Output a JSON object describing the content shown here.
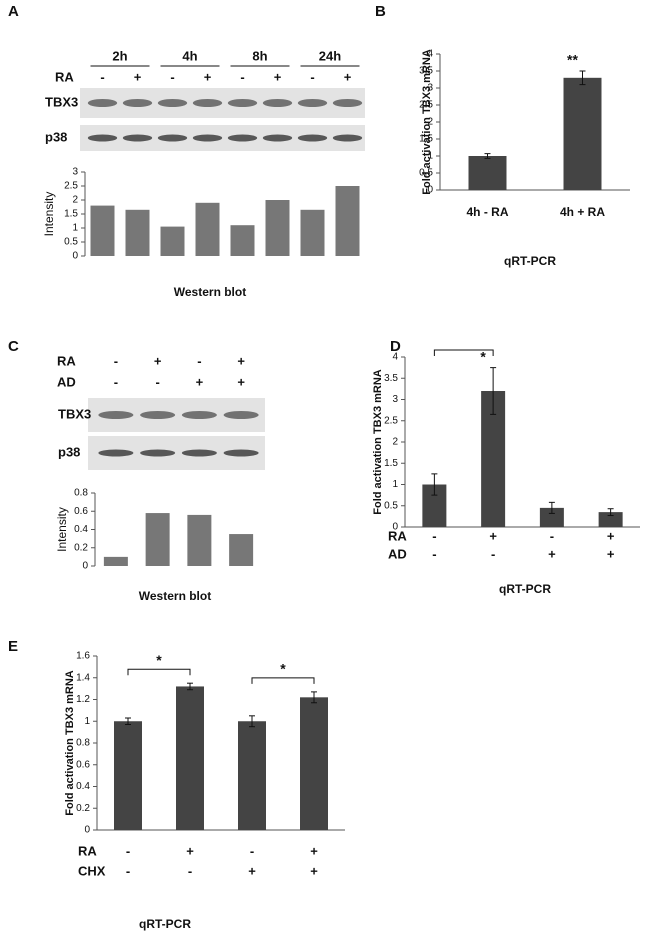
{
  "chart_data": [
    {
      "type": "bar",
      "panel": "A",
      "group_labels": [
        "2h",
        "4h",
        "8h",
        "24h"
      ],
      "conditions": [
        {
          "label": "RA",
          "signs": [
            "-",
            "+",
            "-",
            "+",
            "-",
            "+",
            "-",
            "+"
          ]
        }
      ],
      "bands": [
        "TBX3",
        "p38"
      ],
      "categories": [
        null,
        null,
        null,
        null,
        null,
        null,
        null,
        null
      ],
      "values": [
        1.8,
        1.65,
        1.05,
        1.9,
        1.1,
        2.0,
        1.65,
        2.5
      ],
      "color": "#777777",
      "ylabel": "Intensity",
      "xlabel": "Western blot",
      "ylim": [
        0,
        3
      ],
      "yticks": [
        0,
        0.5,
        1,
        1.5,
        2,
        2.5,
        3
      ]
    },
    {
      "type": "bar",
      "panel": "B",
      "categories": [
        "4h - RA",
        "4h + RA"
      ],
      "values": [
        1,
        3.3
      ],
      "errors": [
        0.07,
        0.2
      ],
      "significance": [
        null,
        "**"
      ],
      "color": "#444444",
      "ylabel": "Fold activation TBX3 mRNA",
      "xlabel": "qRT-PCR",
      "ylim": [
        0,
        4
      ],
      "yticks": [
        0,
        0.5,
        1,
        1.5,
        2,
        2.5,
        3,
        3.5,
        4
      ]
    },
    {
      "type": "bar",
      "panel": "C",
      "conditions": [
        {
          "label": "RA",
          "signs": [
            "-",
            "+",
            "-",
            "+"
          ]
        },
        {
          "label": "AD",
          "signs": [
            "-",
            "-",
            "+",
            "+"
          ]
        }
      ],
      "bands": [
        "TBX3",
        "p38"
      ],
      "categories": [
        null,
        null,
        null,
        null
      ],
      "values": [
        0.1,
        0.58,
        0.56,
        0.35
      ],
      "color": "#777777",
      "ylabel": "Intensity",
      "xlabel": "Western blot",
      "ylim": [
        0,
        0.8
      ],
      "yticks": [
        0,
        0.2,
        0.4,
        0.6,
        0.8
      ]
    },
    {
      "type": "bar",
      "panel": "D",
      "conditions": [
        {
          "label": "RA",
          "signs": [
            "-",
            "+",
            "-",
            "+"
          ]
        },
        {
          "label": "AD",
          "signs": [
            "-",
            "-",
            "+",
            "+"
          ]
        }
      ],
      "categories": [
        null,
        null,
        null,
        null
      ],
      "values": [
        1,
        3.2,
        0.45,
        0.35
      ],
      "errors": [
        0.25,
        0.55,
        0.13,
        0.08
      ],
      "significance": [
        null,
        "*",
        null,
        null
      ],
      "color": "#444444",
      "ylabel": "Fold activation TBX3 mRNA",
      "xlabel": "qRT-PCR",
      "ylim": [
        0,
        4
      ],
      "yticks": [
        0,
        0.5,
        1,
        1.5,
        2,
        2.5,
        3,
        3.5,
        4
      ]
    },
    {
      "type": "bar",
      "panel": "E",
      "conditions": [
        {
          "label": "RA",
          "signs": [
            "-",
            "+",
            "-",
            "+"
          ]
        },
        {
          "label": "CHX",
          "signs": [
            "-",
            "-",
            "+",
            "+"
          ]
        }
      ],
      "categories": [
        null,
        null,
        null,
        null
      ],
      "values": [
        1,
        1.32,
        1,
        1.22
      ],
      "errors": [
        0.03,
        0.03,
        0.05,
        0.05
      ],
      "bracket_labels": [
        "*",
        "*"
      ],
      "color": "#444444",
      "ylabel": "Fold activation TBX3 mRNA",
      "xlabel": "qRT-PCR",
      "ylim": [
        0,
        1.6
      ],
      "yticks": [
        0,
        0.2,
        0.4,
        0.6,
        0.8,
        1,
        1.2,
        1.4,
        1.6
      ]
    }
  ]
}
